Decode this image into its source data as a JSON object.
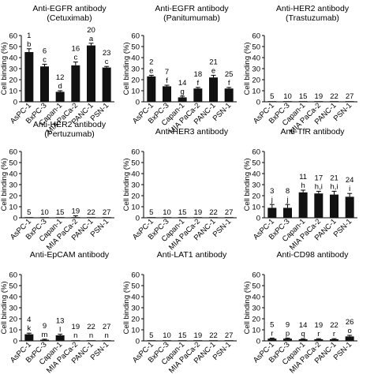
{
  "chart_data": [
    {
      "type": "bar",
      "title": "Anti-EGFR antibody",
      "subtitle": "(Cetuximab)",
      "ylabel": "Cell binding (%)",
      "ylim": [
        0,
        60
      ],
      "yticks": [
        "0",
        "10",
        "20",
        "30",
        "40",
        "50",
        "60"
      ],
      "categories": [
        "AsPC-1",
        "BxPC-3",
        "Capan-1",
        "MIA PaCa-2",
        "PANC-1",
        "PSN-1"
      ],
      "values": [
        45,
        32,
        9,
        33,
        51,
        31
      ],
      "errors": [
        3,
        2,
        1,
        3,
        2,
        1
      ],
      "number_labels": [
        "1",
        "6",
        "12",
        "16",
        "20",
        "23"
      ],
      "letter_labels": [
        "b",
        "c",
        "d",
        "c",
        "a",
        "c"
      ]
    },
    {
      "type": "bar",
      "title": "Anti-EGFR antibody",
      "subtitle": "(Panitumumab)",
      "ylabel": "Cell binding (%)",
      "ylim": [
        0,
        60
      ],
      "yticks": [
        "0",
        "10",
        "20",
        "30",
        "40",
        "50",
        "60"
      ],
      "categories": [
        "AsPC-1",
        "BxPC-3",
        "Capan-1",
        "MIA PaCa-2",
        "PANC-1",
        "PSN-1"
      ],
      "values": [
        23,
        14,
        4,
        12,
        22,
        12
      ],
      "errors": [
        1,
        1,
        1,
        1,
        2,
        1
      ],
      "number_labels": [
        "2",
        "7",
        "14",
        "18",
        "21",
        "25"
      ],
      "letter_labels": [
        "e",
        "f",
        "g",
        "f",
        "e",
        "f"
      ]
    },
    {
      "type": "bar",
      "title": "Anti-HER2 antibody",
      "subtitle": "(Trastuzumab)",
      "ylabel": "Cell binding (%)",
      "ylim": [
        0,
        60
      ],
      "yticks": [
        "0",
        "10",
        "20",
        "30",
        "40",
        "50",
        "60"
      ],
      "categories": [
        "AsPC-1",
        "BxPC-3",
        "Capan-1",
        "MIA PaCa-2",
        "PANC-1",
        "PSN-1"
      ],
      "values": [
        0.3,
        0.3,
        0.3,
        0.3,
        0.3,
        0.3
      ],
      "errors": [
        0,
        0,
        0,
        0,
        0,
        0
      ],
      "number_labels": [
        "5",
        "10",
        "15",
        "19",
        "22",
        "27"
      ],
      "letter_labels": [
        "",
        "",
        "",
        "",
        "",
        ""
      ]
    },
    {
      "type": "bar",
      "title": "Anti-HER2 antibody",
      "subtitle": "(Pertuzumab)",
      "ylabel": "Cell binding (%)",
      "ylim": [
        0,
        60
      ],
      "yticks": [
        "0",
        "10",
        "20",
        "30",
        "40",
        "50",
        "60"
      ],
      "categories": [
        "AsPC-1",
        "BxPC-3",
        "Capan-1",
        "MIA PaCa-2",
        "PANC-1",
        "PSN-1"
      ],
      "values": [
        0.3,
        0.3,
        0.3,
        0.3,
        0.3,
        0.3
      ],
      "errors": [
        0,
        0,
        0,
        1.5,
        0,
        0
      ],
      "number_labels": [
        "5",
        "10",
        "15",
        "19",
        "22",
        "27"
      ],
      "letter_labels": [
        "",
        "",
        "",
        "",
        "",
        ""
      ]
    },
    {
      "type": "bar",
      "title": "Anti-HER3 antibody",
      "subtitle": "",
      "ylabel": "Cell binding (%)",
      "ylim": [
        0,
        60
      ],
      "yticks": [
        "0",
        "10",
        "20",
        "30",
        "40",
        "50",
        "60"
      ],
      "categories": [
        "AsPC-1",
        "BxPC-3",
        "Capan-1",
        "MIA PaCa-2",
        "PANC-1",
        "PSN-1"
      ],
      "values": [
        0.3,
        0.3,
        0.3,
        0.3,
        0.3,
        0.3
      ],
      "errors": [
        0,
        0,
        0,
        0,
        0,
        0
      ],
      "number_labels": [
        "5",
        "10",
        "15",
        "19",
        "22",
        "27"
      ],
      "letter_labels": [
        "",
        "",
        "",
        "",
        "",
        ""
      ]
    },
    {
      "type": "bar",
      "title": "Anti-TfR antibody",
      "subtitle": "",
      "ylabel": "Cell binding (%)",
      "ylim": [
        0,
        60
      ],
      "yticks": [
        "0",
        "10",
        "20",
        "30",
        "40",
        "50",
        "60"
      ],
      "categories": [
        "AsPC-1",
        "BxPC-3",
        "Capan-1",
        "MIA PaCa-2",
        "PANC-1",
        "PSN-1"
      ],
      "values": [
        9,
        9,
        23,
        22,
        21,
        19
      ],
      "errors": [
        3,
        3,
        2,
        2,
        3,
        3
      ],
      "number_labels": [
        "3",
        "8",
        "11",
        "17",
        "21",
        "24"
      ],
      "letter_labels": [
        "j",
        "j",
        "h",
        "h,i",
        "h,i",
        "i"
      ]
    },
    {
      "type": "bar",
      "title": "Anti-EpCAM antibody",
      "subtitle": "",
      "ylabel": "Cell binding (%)",
      "ylim": [
        0,
        60
      ],
      "yticks": [
        "0",
        "10",
        "20",
        "30",
        "40",
        "50",
        "60"
      ],
      "categories": [
        "AsPC-1",
        "BxPC-3",
        "Capan-1",
        "MIA PaCa-2",
        "PANC-1",
        "PSN-1"
      ],
      "values": [
        6,
        1,
        5,
        0.3,
        0.3,
        0.3
      ],
      "errors": [
        1,
        0.5,
        1,
        0,
        0,
        0
      ],
      "number_labels": [
        "4",
        "9",
        "13",
        "19",
        "22",
        "27"
      ],
      "letter_labels": [
        "k",
        "m",
        "l",
        "n",
        "n",
        "n"
      ]
    },
    {
      "type": "bar",
      "title": "Anti-LAT1 antibody",
      "subtitle": "",
      "ylabel": "Cell binding (%)",
      "ylim": [
        0,
        60
      ],
      "yticks": [
        "0",
        "10",
        "20",
        "30",
        "40",
        "50",
        "60"
      ],
      "categories": [
        "AsPC-1",
        "BxPC-3",
        "Capan-1",
        "MIA PaCa-2",
        "PANC-1",
        "PSN-1"
      ],
      "values": [
        0.3,
        0.3,
        0.3,
        0.3,
        0.3,
        0.3
      ],
      "errors": [
        0,
        0,
        0,
        0,
        0,
        0
      ],
      "number_labels": [
        "5",
        "10",
        "15",
        "19",
        "22",
        "27"
      ],
      "letter_labels": [
        "",
        "",
        "",
        "",
        "",
        ""
      ]
    },
    {
      "type": "bar",
      "title": "Anti-CD98 antibody",
      "subtitle": "",
      "ylabel": "Cell binding (%)",
      "ylim": [
        0,
        60
      ],
      "yticks": [
        "0",
        "10",
        "20",
        "30",
        "40",
        "50",
        "60"
      ],
      "categories": [
        "AsPC-1",
        "BxPC-3",
        "Capan-1",
        "MIA PaCa-2",
        "PANC-1",
        "PSN-1"
      ],
      "values": [
        2,
        2,
        1.5,
        1.5,
        1.5,
        4
      ],
      "errors": [
        0.5,
        0.5,
        0.5,
        0.5,
        0.5,
        1
      ],
      "number_labels": [
        "5",
        "9",
        "14",
        "19",
        "22",
        "26"
      ],
      "letter_labels": [
        "r",
        "p",
        "q",
        "r",
        "r",
        "o"
      ]
    }
  ]
}
